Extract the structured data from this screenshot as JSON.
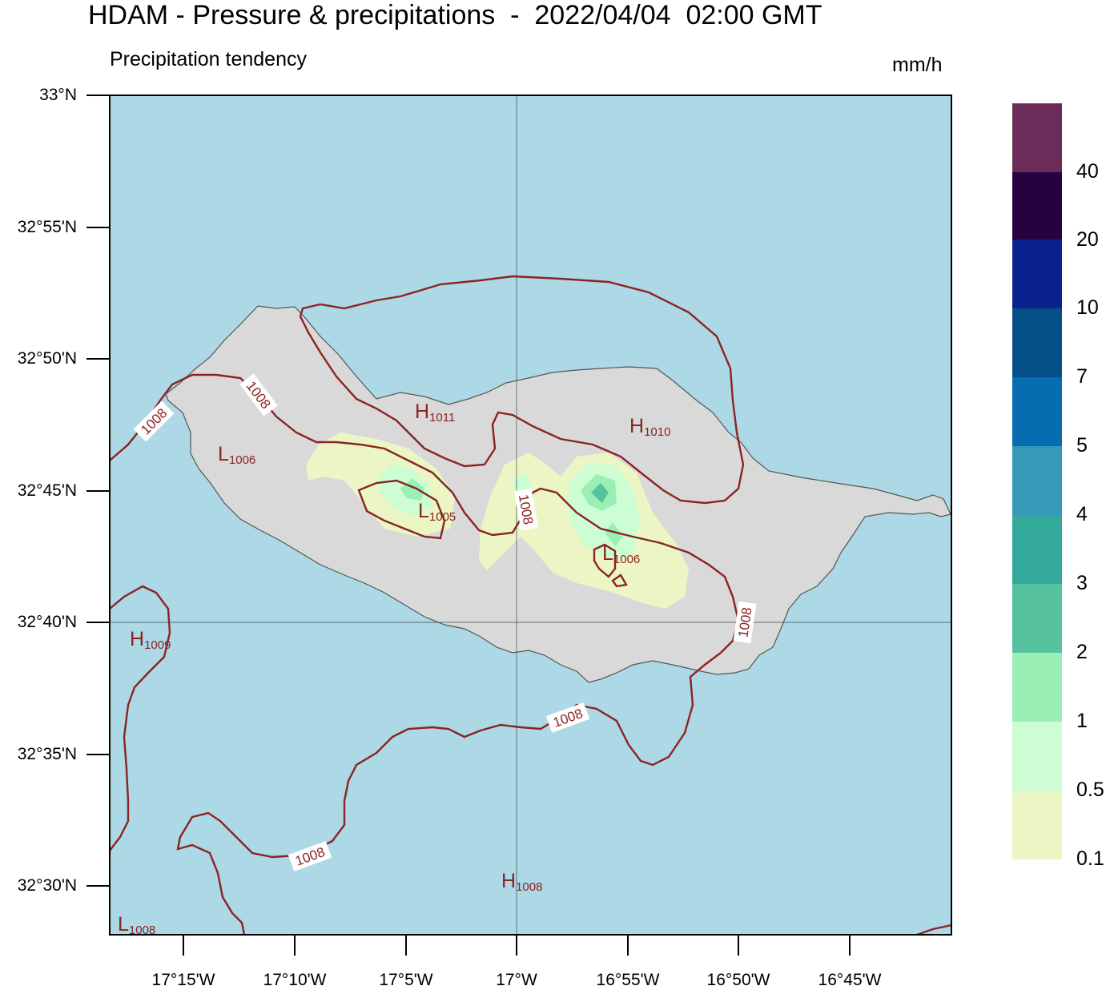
{
  "title": "HDAM - Pressure & precipitations  -  2022/04/04  02:00 GMT",
  "subtitle": "Precipitation tendency",
  "units": "mm/h",
  "colors": {
    "sea": "#add8e6",
    "land": "#d9d9d9",
    "coast": "#555555",
    "isobar": "#8b2323",
    "grid": "#3a4a5a"
  },
  "lat_labels": [
    "33°N",
    "32°55'N",
    "32°50'N",
    "32°45'N",
    "32°40'N",
    "32°35'N",
    "32°30'N"
  ],
  "lon_labels": [
    "17°15'W",
    "17°10'W",
    "17°5'W",
    "17°W",
    "16°55'W",
    "16°50'W",
    "16°45'W"
  ],
  "colorbar": {
    "labels": [
      "0.1",
      "0.5",
      "1",
      "2",
      "3",
      "4",
      "5",
      "7",
      "10",
      "20",
      "40"
    ],
    "colors": [
      "#ebf6c4",
      "#ccfdd3",
      "#9aefb4",
      "#56c19f",
      "#33a99a",
      "#3799b9",
      "#066db0",
      "#054f89",
      "#0b218d",
      "#270242",
      "#6b2c5a"
    ]
  },
  "pressure_labels": [
    {
      "letter": "H",
      "value": "1011"
    },
    {
      "letter": "H",
      "value": "1010"
    },
    {
      "letter": "L",
      "value": "1006"
    },
    {
      "letter": "L",
      "value": "1005"
    },
    {
      "letter": "L",
      "value": "1006"
    },
    {
      "letter": "H",
      "value": "1009"
    },
    {
      "letter": "H",
      "value": "1008"
    },
    {
      "letter": "L",
      "value": "1008"
    }
  ],
  "contour_labels": [
    "1008",
    "1008",
    "1008",
    "1008",
    "1008",
    "1008"
  ]
}
